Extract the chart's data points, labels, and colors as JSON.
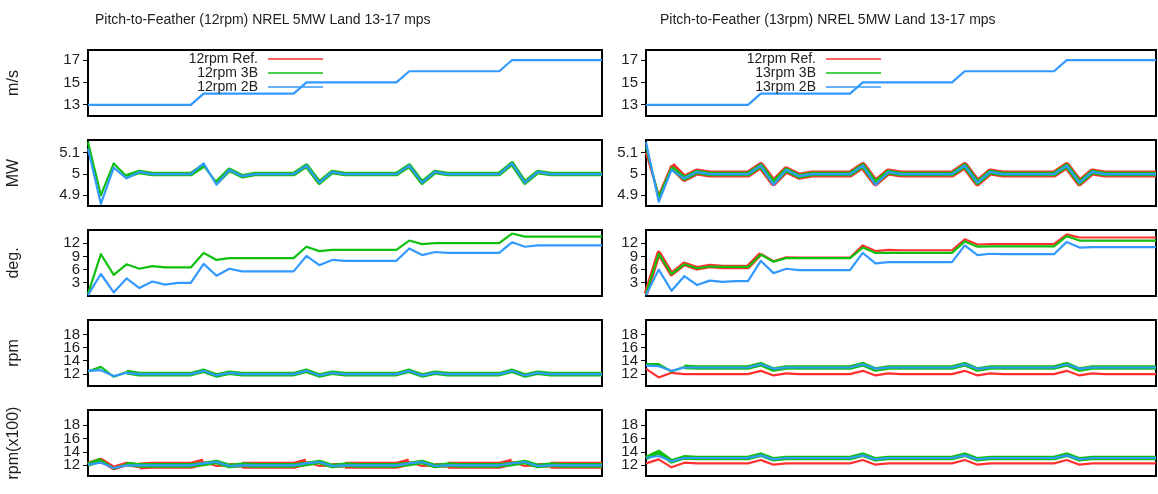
{
  "chart_data": [
    {
      "type": "line",
      "title": "Pitch-to-Feather (12rpm) NREL 5MW Land 13-17 mps",
      "ylabel": "m/s",
      "legend": "top left",
      "categories": [
        null,
        null,
        null,
        null,
        null,
        null,
        null,
        null,
        null,
        null,
        null,
        null,
        null,
        null,
        null,
        null,
        null,
        null,
        null,
        null,
        null,
        null,
        null,
        null,
        null,
        null,
        null,
        null,
        null,
        null,
        null,
        null,
        null,
        null,
        null,
        null,
        null,
        null,
        null,
        null,
        null
      ],
      "ylim": [
        12,
        17.9
      ],
      "yticks": [
        13,
        15,
        17
      ],
      "series": [
        {
          "name": "12rpm Ref.",
          "color": "#ff3030",
          "values": [
            null,
            null,
            null,
            null,
            null,
            null,
            null,
            null,
            null,
            null,
            null,
            null,
            null,
            null,
            null,
            null,
            null,
            null,
            null,
            null,
            null,
            null,
            null,
            null,
            null,
            null,
            null,
            null,
            null,
            null,
            null,
            null,
            null,
            null,
            null,
            null,
            null,
            null,
            null,
            null,
            null
          ]
        },
        {
          "name": "12rpm 3B",
          "color": "#10c010",
          "values": [
            null,
            null,
            null,
            null,
            null,
            null,
            null,
            null,
            null,
            null,
            null,
            null,
            null,
            null,
            null,
            null,
            null,
            null,
            null,
            null,
            null,
            null,
            null,
            null,
            null,
            null,
            null,
            null,
            null,
            null,
            null,
            null,
            null,
            null,
            null,
            null,
            null,
            null,
            null,
            null,
            null
          ]
        },
        {
          "name": "12rpm 2B",
          "color": "#3399ff",
          "values": [
            13,
            13,
            13,
            13,
            13,
            13,
            13,
            13,
            13,
            14,
            14,
            14,
            14,
            14,
            14,
            14,
            14,
            15,
            15,
            15,
            15,
            15,
            15,
            15,
            15,
            16,
            16,
            16,
            16,
            16,
            16,
            16,
            16,
            17,
            17,
            17,
            17,
            17,
            17,
            17,
            17
          ]
        }
      ]
    },
    {
      "type": "line",
      "ylabel": "MW",
      "categories": [
        null,
        null,
        null,
        null,
        null,
        null,
        null,
        null,
        null,
        null,
        null,
        null,
        null,
        null,
        null,
        null,
        null,
        null,
        null,
        null,
        null,
        null,
        null,
        null,
        null,
        null,
        null,
        null,
        null,
        null,
        null,
        null,
        null,
        null,
        null,
        null,
        null,
        null,
        null,
        null,
        null
      ],
      "ylim": [
        4.85,
        5.16
      ],
      "yticks": [
        4.9,
        5,
        5.1
      ],
      "series": [
        {
          "color": "#ff3030",
          "values": [
            null,
            null,
            null,
            null,
            null,
            null,
            null,
            null,
            null,
            null,
            null,
            null,
            null,
            null,
            null,
            null,
            null,
            null,
            null,
            null,
            null,
            null,
            null,
            null,
            null,
            null,
            null,
            null,
            null,
            null,
            null,
            null,
            null,
            null,
            null,
            null,
            null,
            null,
            null,
            null,
            null
          ]
        },
        {
          "color": "#10c010",
          "values": [
            5.15,
            4.9,
            5.05,
            4.99,
            5.01,
            5,
            5,
            5,
            5,
            5.04,
            4.96,
            5.02,
            4.99,
            5,
            5,
            5,
            5,
            5.04,
            4.96,
            5.01,
            5,
            5,
            5,
            5,
            5,
            5.04,
            4.96,
            5.01,
            5,
            5,
            5,
            5,
            5,
            5.05,
            4.96,
            5.01,
            5,
            5,
            5,
            5,
            5
          ]
        },
        {
          "color": "#3399ff",
          "values": [
            5.12,
            4.86,
            5.03,
            4.98,
            5.01,
            5,
            5,
            5,
            5,
            5.05,
            4.95,
            5.02,
            4.99,
            5,
            5,
            5,
            5,
            5.04,
            4.96,
            5.01,
            5,
            5,
            5,
            5,
            5,
            5.04,
            4.96,
            5.01,
            5,
            5,
            5,
            5,
            5,
            5.05,
            4.96,
            5.01,
            5,
            5,
            5,
            5,
            5
          ]
        }
      ]
    },
    {
      "type": "line",
      "ylabel": "deg.",
      "categories": [
        null,
        null,
        null,
        null,
        null,
        null,
        null,
        null,
        null,
        null,
        null,
        null,
        null,
        null,
        null,
        null,
        null,
        null,
        null,
        null,
        null,
        null,
        null,
        null,
        null,
        null,
        null,
        null,
        null,
        null,
        null,
        null,
        null,
        null,
        null,
        null,
        null,
        null,
        null,
        null,
        null
      ],
      "ylim": [
        0,
        15
      ],
      "yticks": [
        3,
        6,
        9,
        12
      ],
      "series": [
        {
          "color": "#ff3030",
          "values": [
            null,
            null,
            null,
            null,
            null,
            null,
            null,
            null,
            null,
            null,
            null,
            null,
            null,
            null,
            null,
            null,
            null,
            null,
            null,
            null,
            null,
            null,
            null,
            null,
            null,
            null,
            null,
            null,
            null,
            null,
            null,
            null,
            null,
            null,
            null,
            null,
            null,
            null,
            null,
            null,
            null
          ]
        },
        {
          "color": "#10c010",
          "values": [
            0.5,
            9.5,
            4.8,
            7.2,
            6.2,
            6.8,
            6.5,
            6.5,
            6.5,
            9.8,
            8.2,
            8.6,
            8.6,
            8.6,
            8.6,
            8.6,
            8.6,
            11.2,
            10.2,
            10.5,
            10.5,
            10.5,
            10.5,
            10.5,
            10.5,
            12.6,
            11.8,
            12,
            12,
            12,
            12,
            12,
            12,
            14.2,
            13.5,
            13.5,
            13.5,
            13.5,
            13.5,
            13.5,
            13.5
          ]
        },
        {
          "color": "#3399ff",
          "values": [
            0.2,
            5,
            0.8,
            4,
            1.8,
            3.3,
            2.6,
            3,
            3,
            7.3,
            4.6,
            6.2,
            5.6,
            5.6,
            5.6,
            5.6,
            5.6,
            9.1,
            7,
            8.2,
            8,
            8,
            8,
            8,
            8,
            10.8,
            9.3,
            10,
            9.8,
            9.8,
            9.8,
            9.8,
            9.8,
            12.2,
            11.2,
            11.5,
            11.5,
            11.5,
            11.5,
            11.5,
            11.5
          ]
        }
      ]
    },
    {
      "type": "line",
      "ylabel": "rpm",
      "categories": [
        null,
        null,
        null,
        null,
        null,
        null,
        null,
        null,
        null,
        null,
        null,
        null,
        null,
        null,
        null,
        null,
        null,
        null,
        null,
        null,
        null,
        null,
        null,
        null,
        null,
        null,
        null,
        null,
        null,
        null,
        null,
        null,
        null,
        null,
        null,
        null,
        null,
        null,
        null,
        null,
        null
      ],
      "ylim": [
        10.2,
        20.2
      ],
      "yticks": [
        12,
        14,
        16,
        18
      ],
      "series": [
        {
          "color": "#ff3030",
          "values": [
            null,
            null,
            null,
            null,
            null,
            null,
            null,
            null,
            null,
            null,
            null,
            null,
            null,
            null,
            null,
            null,
            null,
            null,
            null,
            null,
            null,
            null,
            null,
            null,
            null,
            null,
            null,
            null,
            null,
            null,
            null,
            null,
            null,
            null,
            null,
            null,
            null,
            null,
            null,
            null,
            null
          ]
        },
        {
          "color": "#10c010",
          "values": [
            12.4,
            13.1,
            11.6,
            12.3,
            12,
            12,
            12,
            12,
            12,
            12.5,
            11.8,
            12.2,
            12,
            12,
            12,
            12,
            12,
            12.5,
            11.8,
            12.2,
            12,
            12,
            12,
            12,
            12,
            12.5,
            11.8,
            12.2,
            12,
            12,
            12,
            12,
            12,
            12.5,
            11.8,
            12.2,
            12,
            12,
            12,
            12,
            12
          ]
        },
        {
          "color": "#3399ff",
          "values": [
            12.5,
            12.6,
            11.7,
            12.2,
            12,
            12,
            12,
            12,
            12,
            12.5,
            11.8,
            12.2,
            12,
            12,
            12,
            12,
            12,
            12.5,
            11.8,
            12.2,
            12,
            12,
            12,
            12,
            12,
            12.5,
            11.8,
            12.2,
            12,
            12,
            12,
            12,
            12,
            12.5,
            11.8,
            12.2,
            12,
            12,
            12,
            12,
            12
          ]
        }
      ]
    },
    {
      "type": "line",
      "ylabel": "rpm(x100)",
      "categories": [
        null,
        null,
        null,
        null,
        null,
        null,
        null,
        null,
        null,
        null,
        null,
        null,
        null,
        null,
        null,
        null,
        null,
        null,
        null,
        null,
        null,
        null,
        null,
        null,
        null,
        null,
        null,
        null,
        null,
        null,
        null,
        null,
        null,
        null,
        null,
        null,
        null,
        null,
        null,
        null,
        null
      ],
      "ylim": [
        10.4,
        20.3
      ],
      "yticks": [
        12,
        14,
        16,
        18
      ],
      "series": [
        {
          "color": "#ff3030",
          "values": [
            12.2,
            12.8,
            11.6,
            12.2,
            11.9,
            12,
            12,
            12,
            12,
            12.5,
            11.9,
            12,
            12,
            12,
            12,
            12,
            12,
            12.5,
            11.9,
            12,
            12,
            12,
            12,
            12,
            12,
            12.5,
            11.9,
            12,
            12,
            12,
            12,
            12,
            12,
            12.5,
            11.9,
            12,
            12,
            12,
            12,
            12,
            12
          ]
        },
        {
          "color": "#10c010",
          "values": [
            12.1,
            12.8,
            11.5,
            12.2,
            12,
            12,
            12,
            12,
            12,
            12.2,
            12.5,
            11.9,
            12.1,
            12,
            12,
            12,
            12,
            12.2,
            12.5,
            11.9,
            12.1,
            12,
            12,
            12,
            12,
            12.2,
            12.5,
            11.9,
            12.1,
            12,
            12,
            12,
            12,
            12.2,
            12.5,
            11.9,
            12.1,
            12,
            12,
            12,
            12
          ]
        },
        {
          "color": "#3399ff",
          "values": [
            12.1,
            12.4,
            11.6,
            12,
            12,
            12,
            12,
            12,
            12,
            12.3,
            12.5,
            11.9,
            12,
            12,
            12,
            12,
            12,
            12.3,
            12.5,
            11.9,
            12,
            12,
            12,
            12,
            12,
            12.3,
            12.5,
            11.9,
            12,
            12,
            12,
            12,
            12,
            12.3,
            12.5,
            11.9,
            12,
            12,
            12,
            12,
            12
          ]
        }
      ]
    },
    {
      "type": "line",
      "title": "Pitch-to-Feather (13rpm) NREL 5MW Land 13-17 mps",
      "legend": "top left",
      "categories": [
        null,
        null,
        null,
        null,
        null,
        null,
        null,
        null,
        null,
        null,
        null,
        null,
        null,
        null,
        null,
        null,
        null,
        null,
        null,
        null,
        null,
        null,
        null,
        null,
        null,
        null,
        null,
        null,
        null,
        null,
        null,
        null,
        null,
        null,
        null,
        null,
        null,
        null,
        null,
        null,
        null
      ],
      "ylim": [
        12,
        17.9
      ],
      "yticks": [
        13,
        15,
        17
      ],
      "series": [
        {
          "name": "12rpm Ref.",
          "color": "#ff3030",
          "values": [
            null,
            null,
            null,
            null,
            null,
            null,
            null,
            null,
            null,
            null,
            null,
            null,
            null,
            null,
            null,
            null,
            null,
            null,
            null,
            null,
            null,
            null,
            null,
            null,
            null,
            null,
            null,
            null,
            null,
            null,
            null,
            null,
            null,
            null,
            null,
            null,
            null,
            null,
            null,
            null,
            null
          ]
        },
        {
          "name": "13rpm 3B",
          "color": "#10c010",
          "values": [
            null,
            null,
            null,
            null,
            null,
            null,
            null,
            null,
            null,
            null,
            null,
            null,
            null,
            null,
            null,
            null,
            null,
            null,
            null,
            null,
            null,
            null,
            null,
            null,
            null,
            null,
            null,
            null,
            null,
            null,
            null,
            null,
            null,
            null,
            null,
            null,
            null,
            null,
            null,
            null,
            null
          ]
        },
        {
          "name": "13rpm 2B",
          "color": "#3399ff",
          "values": [
            13,
            13,
            13,
            13,
            13,
            13,
            13,
            13,
            13,
            14,
            14,
            14,
            14,
            14,
            14,
            14,
            14,
            15,
            15,
            15,
            15,
            15,
            15,
            15,
            15,
            16,
            16,
            16,
            16,
            16,
            16,
            16,
            16,
            17,
            17,
            17,
            17,
            17,
            17,
            17,
            17
          ]
        }
      ]
    },
    {
      "type": "line",
      "categories": [
        null,
        null,
        null,
        null,
        null,
        null,
        null,
        null,
        null,
        null,
        null,
        null,
        null,
        null,
        null,
        null,
        null,
        null,
        null,
        null,
        null,
        null,
        null,
        null,
        null,
        null,
        null,
        null,
        null,
        null,
        null,
        null,
        null,
        null,
        null,
        null,
        null,
        null,
        null,
        null,
        null
      ],
      "ylim": [
        4.85,
        5.16
      ],
      "yticks": [
        4.9,
        5,
        5.1
      ],
      "series": [
        {
          "color": "#ff3030",
          "values": [
            5.1,
            4.9,
            5.04,
            4.98,
            5.01,
            5,
            5,
            5,
            5,
            5.04,
            4.96,
            5.02,
            4.99,
            5,
            5,
            5,
            5,
            5.04,
            4.96,
            5.01,
            5,
            5,
            5,
            5,
            5,
            5.04,
            4.96,
            5.01,
            5,
            5,
            5,
            5,
            5,
            5.04,
            4.96,
            5.01,
            5,
            5,
            5,
            5,
            5
          ]
        },
        {
          "color": "#10c010",
          "values": [
            5.13,
            4.89,
            5.03,
            4.98,
            5.01,
            5,
            5,
            5,
            5,
            5.04,
            4.96,
            5.02,
            4.99,
            5,
            5,
            5,
            5,
            5.04,
            4.96,
            5.01,
            5,
            5,
            5,
            5,
            5,
            5.04,
            4.96,
            5.01,
            5,
            5,
            5,
            5,
            5,
            5.04,
            4.96,
            5.01,
            5,
            5,
            5,
            5,
            5
          ]
        },
        {
          "color": "#3399ff",
          "values": [
            5.15,
            4.87,
            5.02,
            4.98,
            5.01,
            5,
            5,
            5,
            5,
            5.04,
            4.95,
            5.02,
            4.99,
            5,
            5,
            5,
            5,
            5.04,
            4.95,
            5.01,
            5,
            5,
            5,
            5,
            5,
            5.04,
            4.96,
            5.01,
            5,
            5,
            5,
            5,
            5,
            5.04,
            4.96,
            5.01,
            5,
            5,
            5,
            5,
            5
          ]
        }
      ]
    },
    {
      "type": "line",
      "categories": [
        null,
        null,
        null,
        null,
        null,
        null,
        null,
        null,
        null,
        null,
        null,
        null,
        null,
        null,
        null,
        null,
        null,
        null,
        null,
        null,
        null,
        null,
        null,
        null,
        null,
        null,
        null,
        null,
        null,
        null,
        null,
        null,
        null,
        null,
        null,
        null,
        null,
        null,
        null,
        null,
        null
      ],
      "ylim": [
        0,
        15
      ],
      "yticks": [
        3,
        6,
        9,
        12
      ],
      "series": [
        {
          "color": "#ff3030",
          "values": [
            0.5,
            9.8,
            5,
            7.3,
            6.3,
            6.8,
            6.6,
            6.6,
            6.6,
            9.6,
            7.9,
            8.8,
            8.7,
            8.7,
            8.7,
            8.7,
            8.7,
            11.5,
            10.2,
            10.5,
            10.4,
            10.4,
            10.4,
            10.4,
            10.4,
            12.9,
            11.7,
            11.8,
            11.8,
            11.8,
            11.8,
            11.8,
            11.8,
            14,
            13.3,
            13.3,
            13.3,
            13.3,
            13.3,
            13.3,
            13.3
          ]
        },
        {
          "color": "#10c010",
          "values": [
            0.5,
            9.6,
            5,
            7.2,
            6.3,
            6.7,
            6.6,
            6.6,
            6.6,
            9.4,
            7.8,
            8.6,
            8.6,
            8.6,
            8.6,
            8.6,
            8.6,
            11,
            9.8,
            9.8,
            9.8,
            9.8,
            9.8,
            9.8,
            9.8,
            12.4,
            11.2,
            11.3,
            11.3,
            11.3,
            11.3,
            11.3,
            11.3,
            13.6,
            12.6,
            12.6,
            12.6,
            12.6,
            12.6,
            12.6,
            12.6
          ]
        },
        {
          "color": "#3399ff",
          "values": [
            0.2,
            6,
            1.2,
            4.5,
            2.5,
            3.5,
            3.2,
            3.4,
            3.4,
            8,
            5.2,
            6.2,
            5.9,
            5.9,
            5.9,
            5.9,
            5.9,
            9.8,
            7.4,
            7.7,
            7.7,
            7.7,
            7.7,
            7.7,
            7.7,
            11.5,
            9.3,
            9.6,
            9.5,
            9.5,
            9.5,
            9.5,
            9.5,
            12.3,
            11,
            11.1,
            11.1,
            11.1,
            11.1,
            11.1,
            11.1
          ]
        }
      ]
    },
    {
      "type": "line",
      "categories": [
        null,
        null,
        null,
        null,
        null,
        null,
        null,
        null,
        null,
        null,
        null,
        null,
        null,
        null,
        null,
        null,
        null,
        null,
        null,
        null,
        null,
        null,
        null,
        null,
        null,
        null,
        null,
        null,
        null,
        null,
        null,
        null,
        null,
        null,
        null,
        null,
        null,
        null,
        null,
        null,
        null
      ],
      "ylim": [
        10.2,
        20.2
      ],
      "yticks": [
        12,
        14,
        16,
        18
      ],
      "series": [
        {
          "color": "#ff3030",
          "values": [
            12.8,
            11.5,
            12.2,
            12,
            12,
            12,
            12,
            12,
            12,
            12.5,
            11.8,
            12.1,
            12,
            12,
            12,
            12,
            12,
            12.5,
            11.8,
            12.1,
            12,
            12,
            12,
            12,
            12,
            12.5,
            11.8,
            12.1,
            12,
            12,
            12,
            12,
            12,
            12.5,
            11.8,
            12.1,
            12,
            12,
            12,
            12,
            12
          ]
        },
        {
          "color": "#10c010",
          "values": [
            13.5,
            13.5,
            12.4,
            13.1,
            13,
            13,
            13,
            13,
            13,
            13.5,
            12.7,
            13,
            13,
            13,
            13,
            13,
            13,
            13.5,
            12.7,
            13,
            13,
            13,
            13,
            13,
            13,
            13.5,
            12.7,
            13,
            13,
            13,
            13,
            13,
            13,
            13.5,
            12.7,
            13,
            13,
            13,
            13,
            13,
            13
          ]
        },
        {
          "color": "#3399ff",
          "values": [
            13.3,
            13.2,
            12.5,
            13,
            13,
            13,
            13,
            13,
            13,
            13.5,
            12.8,
            13,
            13,
            13,
            13,
            13,
            13,
            13.5,
            12.8,
            13,
            13,
            13,
            13,
            13,
            13,
            13.5,
            12.8,
            13,
            13,
            13,
            13,
            13,
            13,
            13.5,
            12.8,
            13,
            13,
            13,
            13,
            13,
            13
          ]
        }
      ]
    },
    {
      "type": "line",
      "categories": [
        null,
        null,
        null,
        null,
        null,
        null,
        null,
        null,
        null,
        null,
        null,
        null,
        null,
        null,
        null,
        null,
        null,
        null,
        null,
        null,
        null,
        null,
        null,
        null,
        null,
        null,
        null,
        null,
        null,
        null,
        null,
        null,
        null,
        null,
        null,
        null,
        null,
        null,
        null,
        null,
        null
      ],
      "ylim": [
        10.4,
        20.3
      ],
      "yticks": [
        12,
        14,
        16,
        18
      ],
      "series": [
        {
          "color": "#ff3030",
          "values": [
            12.3,
            12.9,
            11.7,
            12.4,
            12.3,
            12.3,
            12.3,
            12.3,
            12.3,
            12.8,
            12.1,
            12.3,
            12.3,
            12.3,
            12.3,
            12.3,
            12.3,
            12.8,
            12.1,
            12.3,
            12.3,
            12.3,
            12.3,
            12.3,
            12.3,
            12.8,
            12.1,
            12.3,
            12.3,
            12.3,
            12.3,
            12.3,
            12.3,
            12.8,
            12.1,
            12.3,
            12.3,
            12.3,
            12.3,
            12.3,
            12.3
          ]
        },
        {
          "color": "#10c010",
          "values": [
            13.1,
            14,
            12.6,
            13.2,
            13.1,
            13.1,
            13.1,
            13.1,
            13.1,
            13.6,
            12.9,
            13.1,
            13.1,
            13.1,
            13.1,
            13.1,
            13.1,
            13.6,
            12.9,
            13.1,
            13.1,
            13.1,
            13.1,
            13.1,
            13.1,
            13.6,
            12.9,
            13.1,
            13.1,
            13.1,
            13.1,
            13.1,
            13.1,
            13.6,
            12.9,
            13.1,
            13.1,
            13.1,
            13.1,
            13.1,
            13.1
          ]
        },
        {
          "color": "#3399ff",
          "values": [
            13.1,
            13.4,
            12.6,
            13.1,
            13.1,
            13.1,
            13.1,
            13.1,
            13.1,
            13.5,
            12.9,
            13.1,
            13.1,
            13.1,
            13.1,
            13.1,
            13.1,
            13.5,
            12.9,
            13.1,
            13.1,
            13.1,
            13.1,
            13.1,
            13.1,
            13.5,
            12.9,
            13.1,
            13.1,
            13.1,
            13.1,
            13.1,
            13.1,
            13.5,
            12.9,
            13.1,
            13.1,
            13.1,
            13.1,
            13.1,
            13.1
          ]
        }
      ]
    }
  ]
}
